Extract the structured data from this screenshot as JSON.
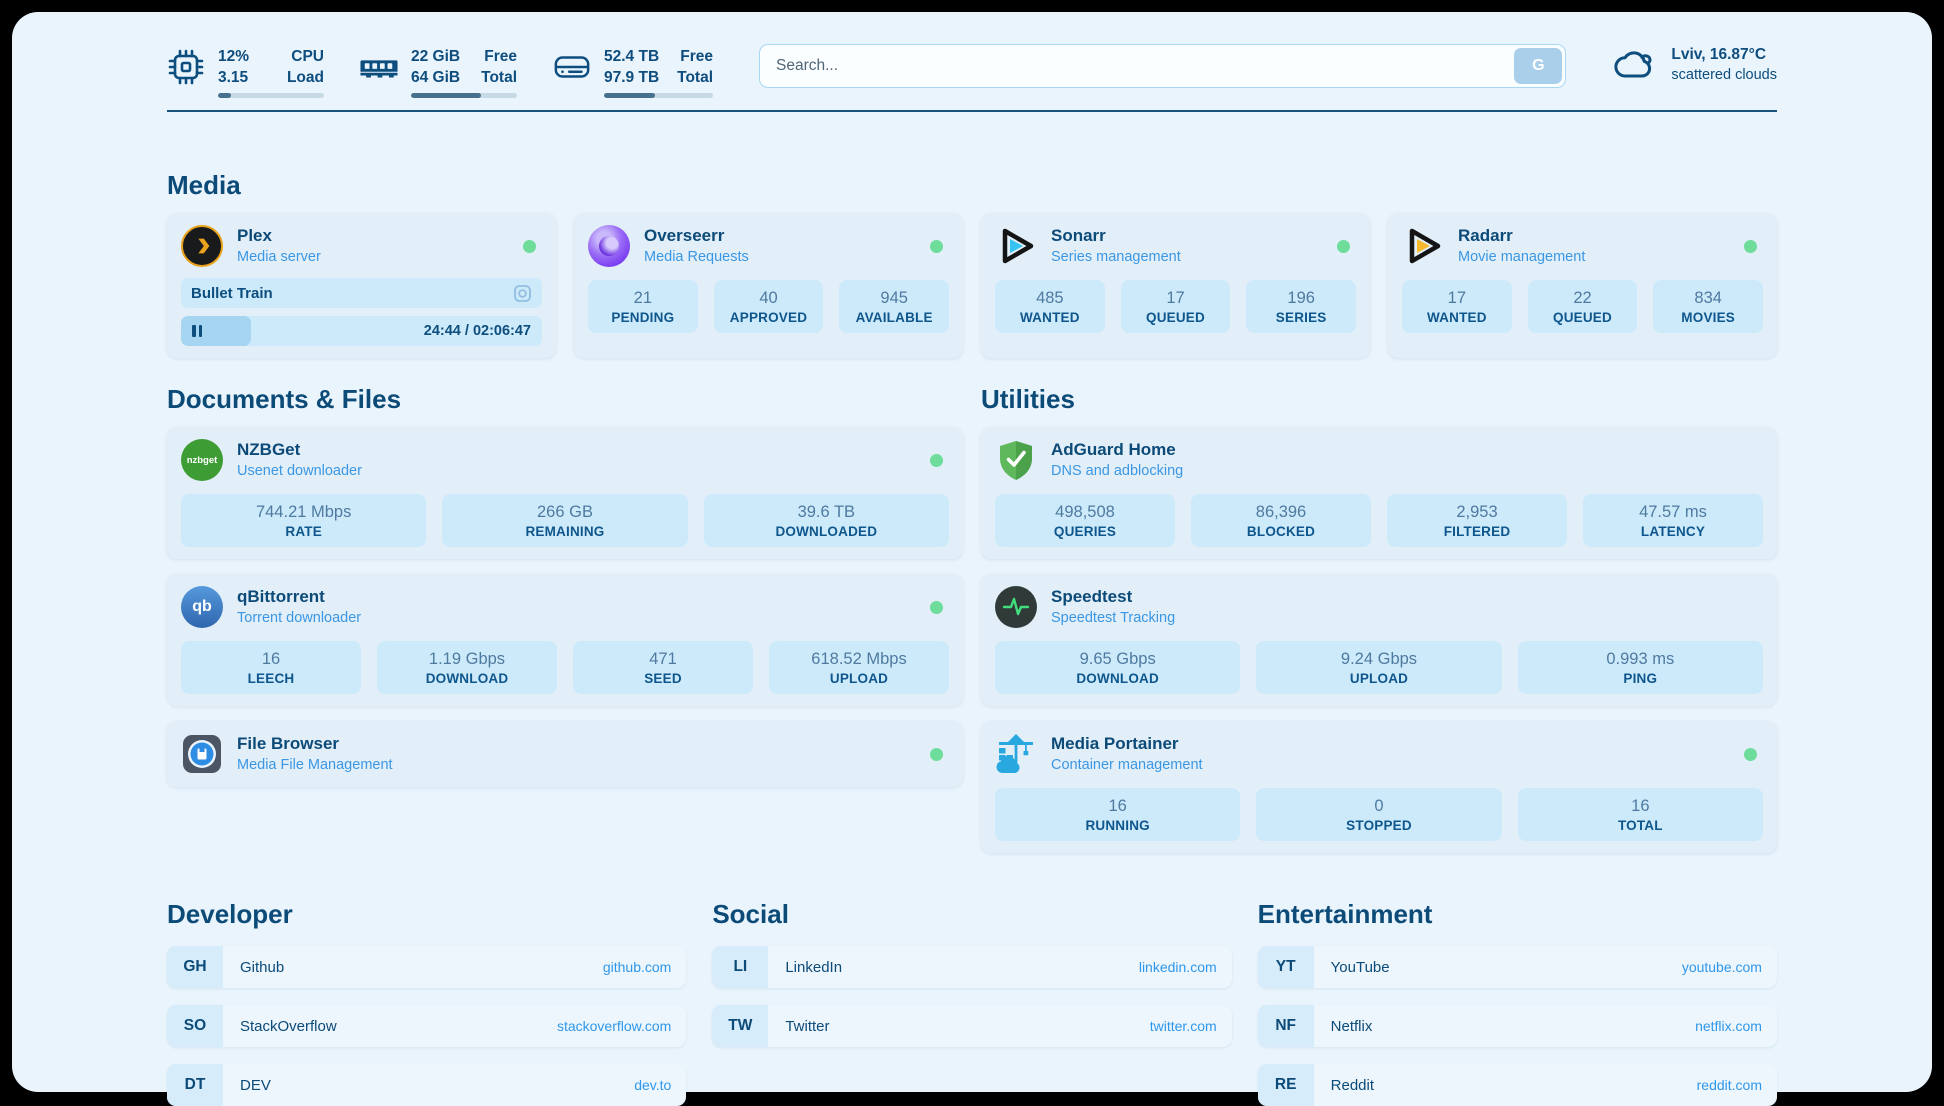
{
  "colors": {
    "accent_navy": "#0d4e7e",
    "link_blue": "#3b97e3",
    "status_online_green": "#6edc9b",
    "page_bg": "#e9f4fc"
  },
  "header": {
    "system_stats": [
      {
        "icon": "cpu-icon",
        "values": [
          "12%",
          "3.15"
        ],
        "labels": [
          "CPU",
          "Load"
        ],
        "progress_pct": 12
      },
      {
        "icon": "ram-icon",
        "values": [
          "22 GiB",
          "64 GiB"
        ],
        "labels": [
          "Free",
          "Total"
        ],
        "progress_pct": 66
      },
      {
        "icon": "disk-icon",
        "values": [
          "52.4 TB",
          "97.9 TB"
        ],
        "labels": [
          "Free",
          "Total"
        ],
        "progress_pct": 47
      }
    ],
    "search": {
      "placeholder": "Search...",
      "button_label": "G"
    },
    "weather": {
      "location": "Lviv, 16.87°C",
      "condition": "scattered clouds"
    }
  },
  "sections": {
    "media": {
      "title": "Media",
      "plex": {
        "name": "Plex",
        "subtitle": "Media server",
        "status": "online",
        "now_playing": "Bullet Train",
        "time": "24:44 / 02:06:47",
        "progress_pct": 19.5
      },
      "overseerr": {
        "name": "Overseerr",
        "subtitle": "Media Requests",
        "status": "online",
        "stats": [
          {
            "value": "21",
            "label": "PENDING"
          },
          {
            "value": "40",
            "label": "APPROVED"
          },
          {
            "value": "945",
            "label": "AVAILABLE"
          }
        ]
      },
      "sonarr": {
        "name": "Sonarr",
        "subtitle": "Series management",
        "status": "online",
        "stats": [
          {
            "value": "485",
            "label": "WANTED"
          },
          {
            "value": "17",
            "label": "QUEUED"
          },
          {
            "value": "196",
            "label": "SERIES"
          }
        ]
      },
      "radarr": {
        "name": "Radarr",
        "subtitle": "Movie management",
        "status": "online",
        "stats": [
          {
            "value": "17",
            "label": "WANTED"
          },
          {
            "value": "22",
            "label": "QUEUED"
          },
          {
            "value": "834",
            "label": "MOVIES"
          }
        ]
      }
    },
    "documents": {
      "title": "Documents & Files",
      "nzbget": {
        "name": "NZBGet",
        "subtitle": "Usenet downloader",
        "status": "online",
        "icon_text": "nzbget",
        "stats": [
          {
            "value": "744.21 Mbps",
            "label": "RATE"
          },
          {
            "value": "266 GB",
            "label": "REMAINING"
          },
          {
            "value": "39.6 TB",
            "label": "DOWNLOADED"
          }
        ]
      },
      "qbittorrent": {
        "name": "qBittorrent",
        "subtitle": "Torrent downloader",
        "status": "online",
        "icon_text": "qb",
        "stats": [
          {
            "value": "16",
            "label": "LEECH"
          },
          {
            "value": "1.19 Gbps",
            "label": "DOWNLOAD"
          },
          {
            "value": "471",
            "label": "SEED"
          },
          {
            "value": "618.52 Mbps",
            "label": "UPLOAD"
          }
        ]
      },
      "filebrowser": {
        "name": "File Browser",
        "subtitle": "Media File Management",
        "status": "online"
      }
    },
    "utilities": {
      "title": "Utilities",
      "adguard": {
        "name": "AdGuard Home",
        "subtitle": "DNS and adblocking",
        "stats": [
          {
            "value": "498,508",
            "label": "QUERIES"
          },
          {
            "value": "86,396",
            "label": "BLOCKED"
          },
          {
            "value": "2,953",
            "label": "FILTERED"
          },
          {
            "value": "47.57 ms",
            "label": "LATENCY"
          }
        ]
      },
      "speedtest": {
        "name": "Speedtest",
        "subtitle": "Speedtest Tracking",
        "stats": [
          {
            "value": "9.65 Gbps",
            "label": "DOWNLOAD"
          },
          {
            "value": "9.24 Gbps",
            "label": "UPLOAD"
          },
          {
            "value": "0.993 ms",
            "label": "PING"
          }
        ]
      },
      "portainer": {
        "name": "Media Portainer",
        "subtitle": "Container management",
        "status": "online",
        "stats": [
          {
            "value": "16",
            "label": "RUNNING"
          },
          {
            "value": "0",
            "label": "STOPPED"
          },
          {
            "value": "16",
            "label": "TOTAL"
          }
        ]
      }
    }
  },
  "bookmarks": {
    "developer": {
      "title": "Developer",
      "items": [
        {
          "abbr": "GH",
          "name": "Github",
          "url": "github.com"
        },
        {
          "abbr": "SO",
          "name": "StackOverflow",
          "url": "stackoverflow.com"
        },
        {
          "abbr": "DT",
          "name": "DEV",
          "url": "dev.to"
        }
      ]
    },
    "social": {
      "title": "Social",
      "items": [
        {
          "abbr": "LI",
          "name": "LinkedIn",
          "url": "linkedin.com"
        },
        {
          "abbr": "TW",
          "name": "Twitter",
          "url": "twitter.com"
        }
      ]
    },
    "entertainment": {
      "title": "Entertainment",
      "items": [
        {
          "abbr": "YT",
          "name": "YouTube",
          "url": "youtube.com"
        },
        {
          "abbr": "NF",
          "name": "Netflix",
          "url": "netflix.com"
        },
        {
          "abbr": "RE",
          "name": "Reddit",
          "url": "reddit.com"
        }
      ]
    }
  }
}
